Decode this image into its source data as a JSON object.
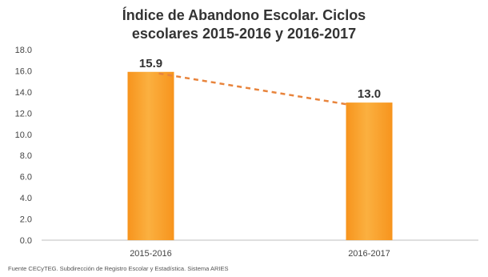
{
  "chart_data": {
    "type": "bar",
    "title": [
      "Índice de Abandono Escolar. Ciclos",
      "escolares 2015-2016 y 2016-2017"
    ],
    "categories": [
      "2015-2016",
      "2016-2017"
    ],
    "values": [
      15.9,
      13.0
    ],
    "value_labels": [
      "15.9",
      "13.0"
    ],
    "y_ticks": [
      "0.0",
      "2.0",
      "4.0",
      "6.0",
      "8.0",
      "10.0",
      "12.0",
      "14.0",
      "16.0",
      "18.0"
    ],
    "ylim": [
      0,
      18
    ],
    "xlabel": "",
    "ylabel": "",
    "grid": false,
    "trend_line": "dashed",
    "colors": {
      "bar": "#F7941D",
      "bar_light": "#FBB040",
      "trend": "#E8843C",
      "axis": "#BFBFBF"
    }
  },
  "source": "Fuente CECyTEG. Subdirección de Registro Escolar y Estadística. Sistema ARIES"
}
